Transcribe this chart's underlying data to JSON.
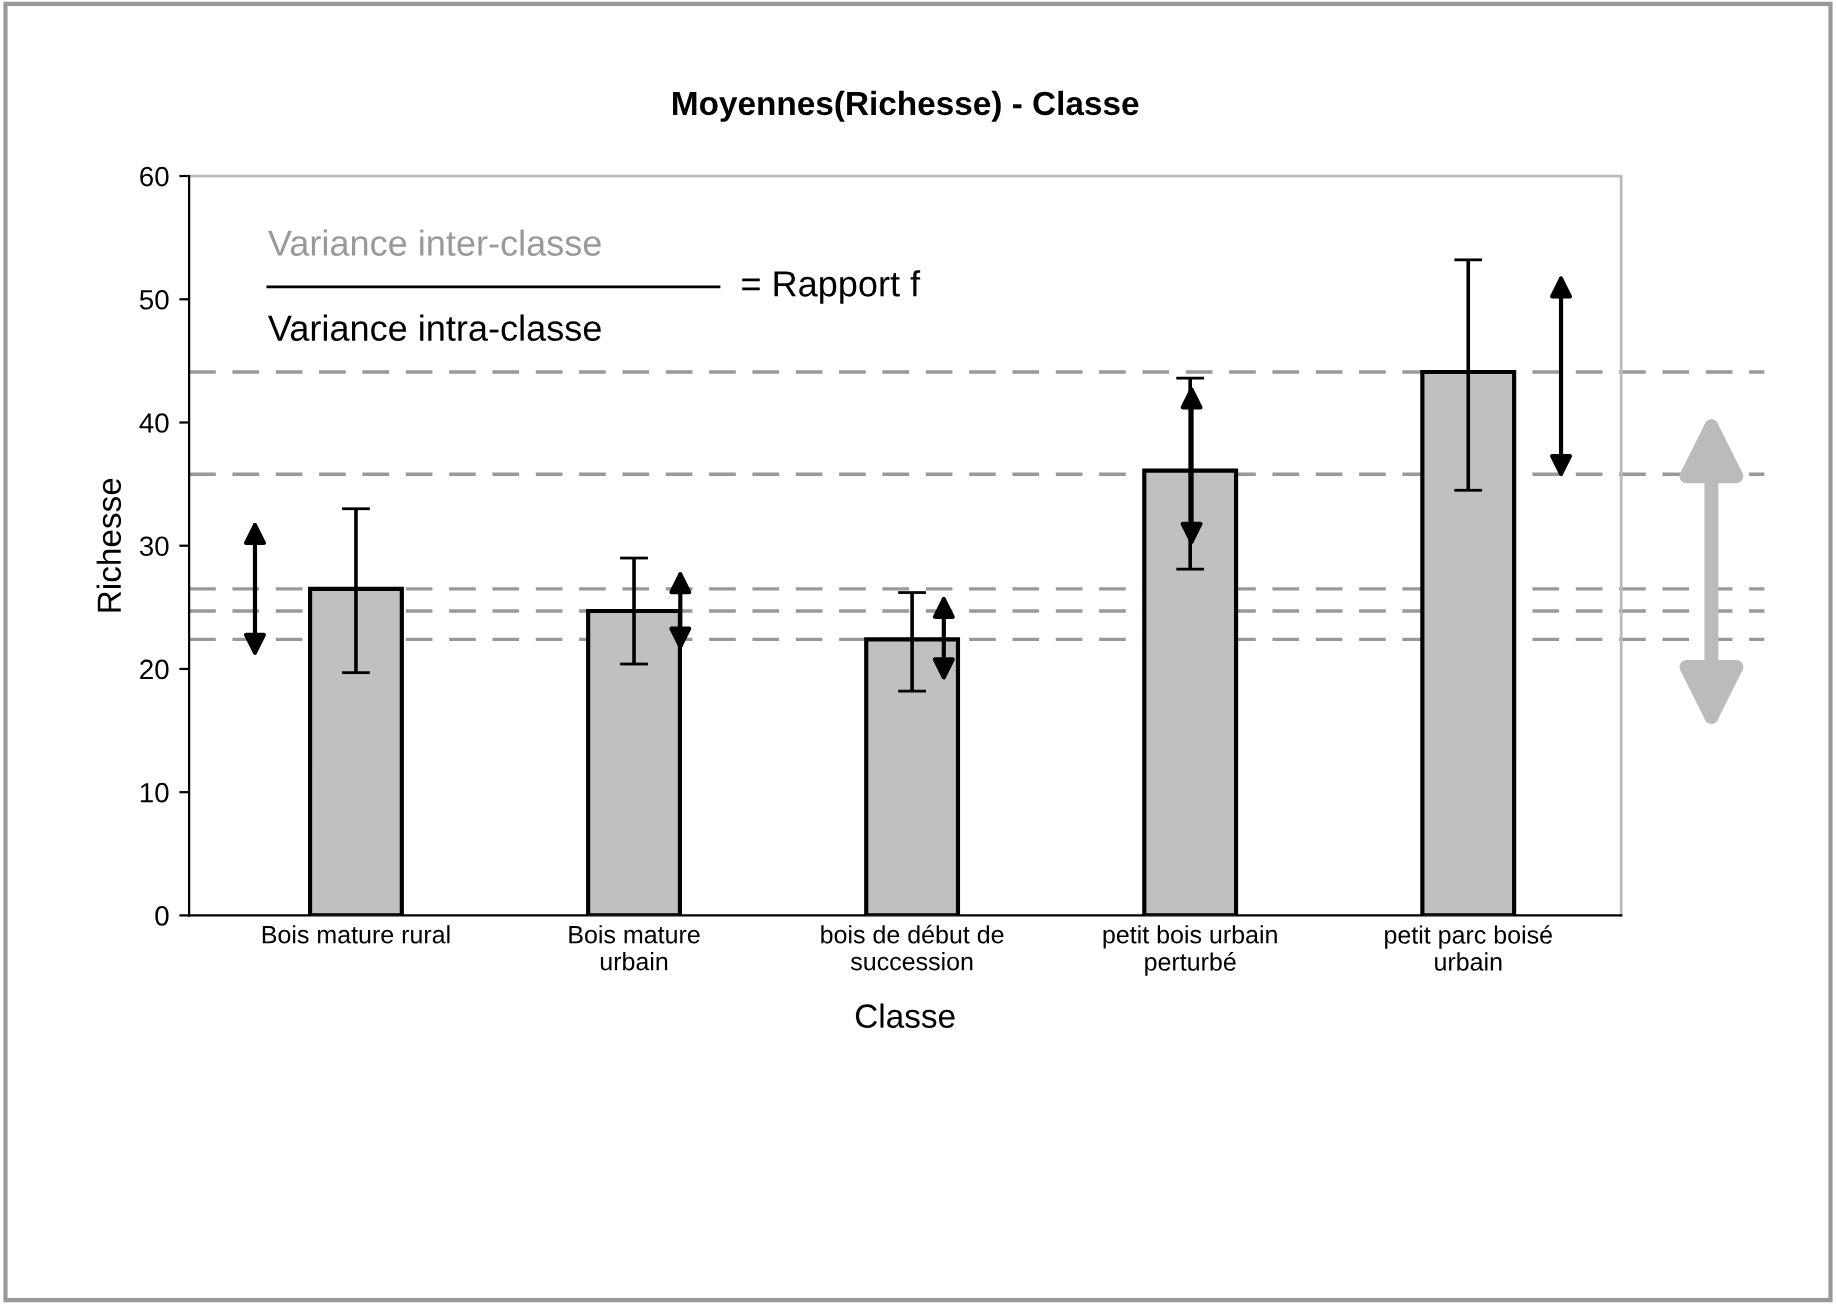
{
  "chart_data": {
    "type": "bar",
    "title": "Moyennes(Richesse) - Classe",
    "xlabel": "Classe",
    "ylabel": "Richesse",
    "categories": [
      "Bois mature rural",
      "Bois mature\nurbain",
      "bois de début de\nsuccession",
      "petit bois urbain\nperturbé",
      "petit parc boisé\nurbain"
    ],
    "values": [
      26.5,
      24.7,
      22.4,
      36.1,
      44.1
    ],
    "color": "#c0c0c0",
    "errors": [
      [
        19.7,
        33.0
      ],
      [
        20.4,
        29.0
      ],
      [
        18.2,
        26.2
      ],
      [
        28.1,
        43.6
      ],
      [
        34.5,
        53.2
      ]
    ],
    "ylim": [
      0,
      60
    ],
    "yticks": [
      0,
      10,
      20,
      30,
      40,
      50,
      60
    ],
    "grid": false,
    "ref_lines": [
      {
        "axis": "y",
        "value": 26.5,
        "color": "#999999",
        "line_style": "dashed"
      },
      {
        "axis": "y",
        "value": 24.7,
        "color": "#999999",
        "line_style": "dashed"
      },
      {
        "axis": "y",
        "value": 22.4,
        "color": "#999999",
        "line_style": "dashed"
      },
      {
        "axis": "y",
        "value": 35.8,
        "color": "#999999",
        "line_style": "dashed"
      },
      {
        "axis": "y",
        "value": 44.1,
        "color": "#999999",
        "line_style": "dashed"
      }
    ],
    "annotations": [
      "Variance inter-classe",
      "Variance intra-classe",
      "= Rapport f"
    ]
  }
}
